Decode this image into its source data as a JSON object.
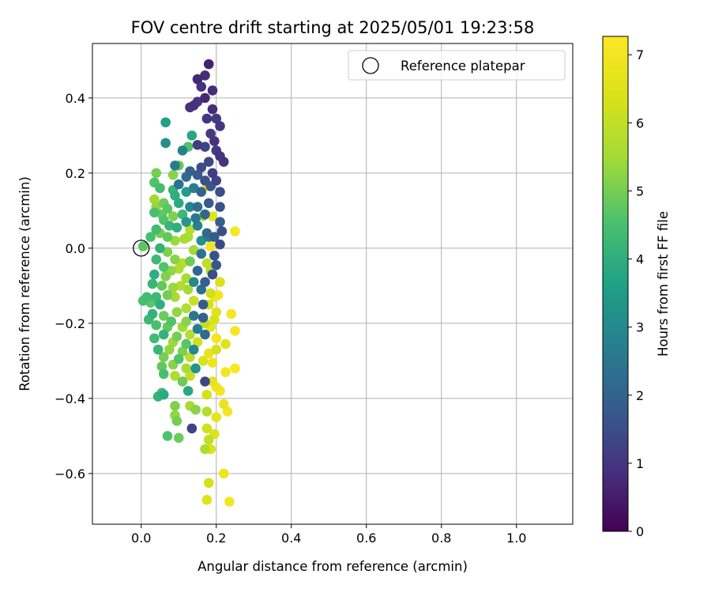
{
  "chart_data": {
    "type": "scatter",
    "title": "FOV centre drift starting at 2025/05/01 19:23:58",
    "xlabel": "Angular distance from reference (arcmin)",
    "ylabel": "Rotation from reference (arcmin)",
    "xlim": [
      -0.13,
      1.15
    ],
    "ylim": [
      -0.735,
      0.545
    ],
    "xticks": [
      0.0,
      0.2,
      0.4,
      0.6,
      0.8,
      1.0
    ],
    "xtick_labels": [
      "0.0",
      "0.2",
      "0.4",
      "0.6",
      "0.8",
      "1.0"
    ],
    "yticks": [
      -0.6,
      -0.4,
      -0.2,
      0.0,
      0.2,
      0.4
    ],
    "ytick_labels": [
      "−0.6",
      "−0.4",
      "−0.2",
      "0.0",
      "0.2",
      "0.4"
    ],
    "grid": true,
    "legend": {
      "position": "top-right",
      "entries": [
        "Reference platepar"
      ]
    },
    "reference_point": {
      "x": 0.0,
      "y": 0.0,
      "label": "Reference platepar"
    },
    "colorbar": {
      "label": "Hours from first FF file",
      "colormap": "viridis",
      "range": [
        0,
        7.27
      ],
      "ticks": [
        0,
        1,
        2,
        3,
        4,
        5,
        6,
        7
      ],
      "tick_labels": [
        "0",
        "1",
        "2",
        "3",
        "4",
        "5",
        "6",
        "7"
      ]
    },
    "points": [
      {
        "x": 0.18,
        "y": 0.49,
        "h": 0.6
      },
      {
        "x": 0.15,
        "y": 0.45,
        "h": 0.7
      },
      {
        "x": 0.17,
        "y": 0.46,
        "h": 0.8
      },
      {
        "x": 0.16,
        "y": 0.43,
        "h": 0.9
      },
      {
        "x": 0.19,
        "y": 0.42,
        "h": 0.8
      },
      {
        "x": 0.17,
        "y": 0.4,
        "h": 0.7
      },
      {
        "x": 0.14,
        "y": 0.38,
        "h": 0.9
      },
      {
        "x": 0.15,
        "y": 0.39,
        "h": 1.0
      },
      {
        "x": 0.19,
        "y": 0.37,
        "h": 0.8
      },
      {
        "x": 0.13,
        "y": 0.375,
        "h": 0.9
      },
      {
        "x": 0.175,
        "y": 0.345,
        "h": 1.0
      },
      {
        "x": 0.2,
        "y": 0.345,
        "h": 1.1
      },
      {
        "x": 0.21,
        "y": 0.325,
        "h": 1.0
      },
      {
        "x": 0.185,
        "y": 0.305,
        "h": 1.1
      },
      {
        "x": 0.195,
        "y": 0.285,
        "h": 0.9
      },
      {
        "x": 0.15,
        "y": 0.275,
        "h": 1.2
      },
      {
        "x": 0.17,
        "y": 0.27,
        "h": 1.3
      },
      {
        "x": 0.2,
        "y": 0.26,
        "h": 1.1
      },
      {
        "x": 0.22,
        "y": 0.23,
        "h": 0.9
      },
      {
        "x": 0.21,
        "y": 0.245,
        "h": 1.0
      },
      {
        "x": 0.18,
        "y": 0.23,
        "h": 1.4
      },
      {
        "x": 0.16,
        "y": 0.215,
        "h": 1.5
      },
      {
        "x": 0.19,
        "y": 0.2,
        "h": 1.2
      },
      {
        "x": 0.2,
        "y": 0.18,
        "h": 1.3
      },
      {
        "x": 0.17,
        "y": 0.18,
        "h": 1.6
      },
      {
        "x": 0.15,
        "y": 0.195,
        "h": 1.8
      },
      {
        "x": 0.13,
        "y": 0.205,
        "h": 2.0
      },
      {
        "x": 0.12,
        "y": 0.19,
        "h": 2.2
      },
      {
        "x": 0.1,
        "y": 0.17,
        "h": 2.4
      },
      {
        "x": 0.09,
        "y": 0.22,
        "h": 2.6
      },
      {
        "x": 0.11,
        "y": 0.26,
        "h": 2.8
      },
      {
        "x": 0.065,
        "y": 0.28,
        "h": 3.2
      },
      {
        "x": 0.065,
        "y": 0.335,
        "h": 3.6
      },
      {
        "x": 0.135,
        "y": 0.3,
        "h": 3.8
      },
      {
        "x": 0.125,
        "y": 0.27,
        "h": 4.6
      },
      {
        "x": 0.1,
        "y": 0.22,
        "h": 4.8
      },
      {
        "x": 0.085,
        "y": 0.195,
        "h": 5.2
      },
      {
        "x": 0.04,
        "y": 0.2,
        "h": 5.0
      },
      {
        "x": 0.035,
        "y": 0.175,
        "h": 4.6
      },
      {
        "x": 0.05,
        "y": 0.16,
        "h": 4.4
      },
      {
        "x": 0.085,
        "y": 0.155,
        "h": 4.2
      },
      {
        "x": 0.09,
        "y": 0.14,
        "h": 4.0
      },
      {
        "x": 0.12,
        "y": 0.15,
        "h": 3.5
      },
      {
        "x": 0.14,
        "y": 0.16,
        "h": 2.7
      },
      {
        "x": 0.16,
        "y": 0.15,
        "h": 2.0
      },
      {
        "x": 0.185,
        "y": 0.165,
        "h": 1.7
      },
      {
        "x": 0.21,
        "y": 0.15,
        "h": 1.5
      },
      {
        "x": 0.175,
        "y": 0.165,
        "h": 6.8
      },
      {
        "x": 0.035,
        "y": 0.13,
        "h": 5.5
      },
      {
        "x": 0.04,
        "y": 0.11,
        "h": 5.3
      },
      {
        "x": 0.06,
        "y": 0.12,
        "h": 4.9
      },
      {
        "x": 0.07,
        "y": 0.105,
        "h": 4.7
      },
      {
        "x": 0.1,
        "y": 0.12,
        "h": 3.9
      },
      {
        "x": 0.13,
        "y": 0.11,
        "h": 2.9
      },
      {
        "x": 0.15,
        "y": 0.11,
        "h": 2.3
      },
      {
        "x": 0.18,
        "y": 0.12,
        "h": 1.8
      },
      {
        "x": 0.21,
        "y": 0.11,
        "h": 1.6
      },
      {
        "x": 0.035,
        "y": 0.095,
        "h": 4.5
      },
      {
        "x": 0.055,
        "y": 0.09,
        "h": 4.8
      },
      {
        "x": 0.085,
        "y": 0.085,
        "h": 5.1
      },
      {
        "x": 0.11,
        "y": 0.09,
        "h": 4.3
      },
      {
        "x": 0.12,
        "y": 0.07,
        "h": 3.4
      },
      {
        "x": 0.145,
        "y": 0.08,
        "h": 2.6
      },
      {
        "x": 0.17,
        "y": 0.09,
        "h": 2.1
      },
      {
        "x": 0.165,
        "y": 0.085,
        "h": 5.7
      },
      {
        "x": 0.19,
        "y": 0.085,
        "h": 6.6
      },
      {
        "x": 0.21,
        "y": 0.07,
        "h": 1.9
      },
      {
        "x": 0.215,
        "y": 0.045,
        "h": 1.5
      },
      {
        "x": 0.25,
        "y": 0.045,
        "h": 7.1
      },
      {
        "x": 0.06,
        "y": 0.075,
        "h": 4.6
      },
      {
        "x": 0.075,
        "y": 0.06,
        "h": 4.2
      },
      {
        "x": 0.095,
        "y": 0.055,
        "h": 4.0
      },
      {
        "x": 0.04,
        "y": 0.05,
        "h": 4.4
      },
      {
        "x": 0.13,
        "y": 0.05,
        "h": 5.8
      },
      {
        "x": 0.15,
        "y": 0.06,
        "h": 2.8
      },
      {
        "x": 0.175,
        "y": 0.04,
        "h": 2.2
      },
      {
        "x": 0.195,
        "y": 0.03,
        "h": 1.8
      },
      {
        "x": 0.05,
        "y": 0.04,
        "h": 5.0
      },
      {
        "x": 0.07,
        "y": 0.03,
        "h": 4.8
      },
      {
        "x": 0.09,
        "y": 0.02,
        "h": 5.4
      },
      {
        "x": 0.115,
        "y": 0.025,
        "h": 5.6
      },
      {
        "x": 0.125,
        "y": 0.03,
        "h": 5.7
      },
      {
        "x": 0.16,
        "y": 0.02,
        "h": 3.2
      },
      {
        "x": 0.18,
        "y": 0.03,
        "h": 2.6
      },
      {
        "x": 0.025,
        "y": 0.03,
        "h": 4.5
      },
      {
        "x": 0.21,
        "y": 0.01,
        "h": 1.4
      },
      {
        "x": 0.185,
        "y": 0.005,
        "h": 7.0
      },
      {
        "x": 0.005,
        "y": 0.005,
        "h": 4.7
      },
      {
        "x": 0.05,
        "y": 0.0,
        "h": 4.1
      },
      {
        "x": 0.07,
        "y": -0.01,
        "h": 5.1
      },
      {
        "x": 0.14,
        "y": -0.005,
        "h": 5.5
      },
      {
        "x": 0.16,
        "y": -0.015,
        "h": 2.4
      },
      {
        "x": 0.195,
        "y": -0.02,
        "h": 1.6
      },
      {
        "x": 0.04,
        "y": -0.03,
        "h": 4.3
      },
      {
        "x": 0.09,
        "y": -0.03,
        "h": 5.2
      },
      {
        "x": 0.11,
        "y": -0.04,
        "h": 5.9
      },
      {
        "x": 0.13,
        "y": -0.035,
        "h": 4.9
      },
      {
        "x": 0.175,
        "y": -0.04,
        "h": 6.0
      },
      {
        "x": 0.2,
        "y": -0.045,
        "h": 1.7
      },
      {
        "x": 0.06,
        "y": -0.05,
        "h": 4.6
      },
      {
        "x": 0.08,
        "y": -0.06,
        "h": 5.3
      },
      {
        "x": 0.1,
        "y": -0.055,
        "h": 5.7
      },
      {
        "x": 0.15,
        "y": -0.06,
        "h": 2.1
      },
      {
        "x": 0.185,
        "y": -0.06,
        "h": 5.8
      },
      {
        "x": 0.035,
        "y": -0.07,
        "h": 4.0
      },
      {
        "x": 0.065,
        "y": -0.075,
        "h": 5.1
      },
      {
        "x": 0.12,
        "y": -0.08,
        "h": 5.6
      },
      {
        "x": 0.19,
        "y": -0.07,
        "h": 1.5
      },
      {
        "x": 0.14,
        "y": -0.09,
        "h": 3.0
      },
      {
        "x": 0.17,
        "y": -0.09,
        "h": 1.9
      },
      {
        "x": 0.21,
        "y": -0.09,
        "h": 6.4
      },
      {
        "x": 0.03,
        "y": -0.095,
        "h": 4.2
      },
      {
        "x": 0.055,
        "y": -0.1,
        "h": 4.8
      },
      {
        "x": 0.085,
        "y": -0.105,
        "h": 5.4
      },
      {
        "x": 0.105,
        "y": -0.1,
        "h": 5.8
      },
      {
        "x": 0.125,
        "y": -0.11,
        "h": 5.5
      },
      {
        "x": 0.16,
        "y": -0.11,
        "h": 2.3
      },
      {
        "x": 0.185,
        "y": -0.12,
        "h": 6.2
      },
      {
        "x": 0.195,
        "y": -0.13,
        "h": 6.9
      },
      {
        "x": 0.205,
        "y": -0.125,
        "h": 7.0
      },
      {
        "x": 0.015,
        "y": -0.13,
        "h": 4.4
      },
      {
        "x": 0.04,
        "y": -0.13,
        "h": 4.3
      },
      {
        "x": 0.07,
        "y": -0.125,
        "h": 5.0
      },
      {
        "x": 0.09,
        "y": -0.13,
        "h": 5.6
      },
      {
        "x": 0.14,
        "y": -0.14,
        "h": 6.1
      },
      {
        "x": 0.165,
        "y": -0.15,
        "h": 1.8
      },
      {
        "x": 0.18,
        "y": -0.15,
        "h": 6.3
      },
      {
        "x": 0.005,
        "y": -0.14,
        "h": 4.5
      },
      {
        "x": 0.025,
        "y": -0.145,
        "h": 4.7
      },
      {
        "x": 0.05,
        "y": -0.15,
        "h": 4.0
      },
      {
        "x": 0.12,
        "y": -0.16,
        "h": 5.7
      },
      {
        "x": 0.2,
        "y": -0.17,
        "h": 6.6
      },
      {
        "x": 0.24,
        "y": -0.175,
        "h": 7.1
      },
      {
        "x": 0.03,
        "y": -0.175,
        "h": 4.1
      },
      {
        "x": 0.06,
        "y": -0.18,
        "h": 4.9
      },
      {
        "x": 0.095,
        "y": -0.17,
        "h": 5.3
      },
      {
        "x": 0.14,
        "y": -0.18,
        "h": 2.5
      },
      {
        "x": 0.165,
        "y": -0.185,
        "h": 1.9
      },
      {
        "x": 0.02,
        "y": -0.19,
        "h": 4.3
      },
      {
        "x": 0.08,
        "y": -0.195,
        "h": 4.6
      },
      {
        "x": 0.12,
        "y": -0.195,
        "h": 5.2
      },
      {
        "x": 0.17,
        "y": -0.2,
        "h": 6.0
      },
      {
        "x": 0.195,
        "y": -0.19,
        "h": 6.4
      },
      {
        "x": 0.04,
        "y": -0.205,
        "h": 4.5
      },
      {
        "x": 0.07,
        "y": -0.21,
        "h": 4.8
      },
      {
        "x": 0.11,
        "y": -0.21,
        "h": 5.5
      },
      {
        "x": 0.15,
        "y": -0.215,
        "h": 2.7
      },
      {
        "x": 0.185,
        "y": -0.21,
        "h": 6.7
      },
      {
        "x": 0.25,
        "y": -0.22,
        "h": 7.1
      },
      {
        "x": 0.06,
        "y": -0.23,
        "h": 4.1
      },
      {
        "x": 0.095,
        "y": -0.235,
        "h": 5.0
      },
      {
        "x": 0.13,
        "y": -0.23,
        "h": 5.8
      },
      {
        "x": 0.17,
        "y": -0.23,
        "h": 2.2
      },
      {
        "x": 0.2,
        "y": -0.24,
        "h": 7.0
      },
      {
        "x": 0.035,
        "y": -0.24,
        "h": 4.4
      },
      {
        "x": 0.085,
        "y": -0.25,
        "h": 5.4
      },
      {
        "x": 0.12,
        "y": -0.255,
        "h": 4.7
      },
      {
        "x": 0.15,
        "y": -0.25,
        "h": 6.2
      },
      {
        "x": 0.225,
        "y": -0.255,
        "h": 6.5
      },
      {
        "x": 0.045,
        "y": -0.27,
        "h": 4.2
      },
      {
        "x": 0.075,
        "y": -0.27,
        "h": 5.3
      },
      {
        "x": 0.11,
        "y": -0.275,
        "h": 5.1
      },
      {
        "x": 0.14,
        "y": -0.27,
        "h": 2.9
      },
      {
        "x": 0.18,
        "y": -0.28,
        "h": 6.8
      },
      {
        "x": 0.2,
        "y": -0.27,
        "h": 6.3
      },
      {
        "x": 0.06,
        "y": -0.29,
        "h": 5.0
      },
      {
        "x": 0.1,
        "y": -0.295,
        "h": 4.6
      },
      {
        "x": 0.13,
        "y": -0.29,
        "h": 5.9
      },
      {
        "x": 0.165,
        "y": -0.3,
        "h": 6.4
      },
      {
        "x": 0.19,
        "y": -0.305,
        "h": 6.9
      },
      {
        "x": 0.055,
        "y": -0.315,
        "h": 4.8
      },
      {
        "x": 0.085,
        "y": -0.31,
        "h": 5.2
      },
      {
        "x": 0.12,
        "y": -0.32,
        "h": 5.6
      },
      {
        "x": 0.145,
        "y": -0.32,
        "h": 3.3
      },
      {
        "x": 0.25,
        "y": -0.32,
        "h": 7.2
      },
      {
        "x": 0.06,
        "y": -0.335,
        "h": 4.5
      },
      {
        "x": 0.09,
        "y": -0.34,
        "h": 5.7
      },
      {
        "x": 0.13,
        "y": -0.34,
        "h": 6.0
      },
      {
        "x": 0.225,
        "y": -0.33,
        "h": 7.0
      },
      {
        "x": 0.17,
        "y": -0.355,
        "h": 1.4
      },
      {
        "x": 0.11,
        "y": -0.355,
        "h": 4.9
      },
      {
        "x": 0.19,
        "y": -0.355,
        "h": 6.6
      },
      {
        "x": 0.2,
        "y": -0.37,
        "h": 6.9
      },
      {
        "x": 0.21,
        "y": -0.38,
        "h": 7.1
      },
      {
        "x": 0.125,
        "y": -0.38,
        "h": 3.8
      },
      {
        "x": 0.055,
        "y": -0.385,
        "h": 4.4
      },
      {
        "x": 0.045,
        "y": -0.395,
        "h": 4.1
      },
      {
        "x": 0.06,
        "y": -0.39,
        "h": 3.9
      },
      {
        "x": 0.175,
        "y": -0.39,
        "h": 6.3
      },
      {
        "x": 0.22,
        "y": -0.415,
        "h": 6.8
      },
      {
        "x": 0.09,
        "y": -0.42,
        "h": 5.1
      },
      {
        "x": 0.13,
        "y": -0.42,
        "h": 5.6
      },
      {
        "x": 0.145,
        "y": -0.43,
        "h": 5.2
      },
      {
        "x": 0.23,
        "y": -0.435,
        "h": 7.0
      },
      {
        "x": 0.175,
        "y": -0.435,
        "h": 5.8
      },
      {
        "x": 0.09,
        "y": -0.445,
        "h": 5.3
      },
      {
        "x": 0.095,
        "y": -0.46,
        "h": 5.0
      },
      {
        "x": 0.2,
        "y": -0.45,
        "h": 6.7
      },
      {
        "x": 0.135,
        "y": -0.48,
        "h": 1.3
      },
      {
        "x": 0.175,
        "y": -0.48,
        "h": 6.2
      },
      {
        "x": 0.195,
        "y": -0.495,
        "h": 6.5
      },
      {
        "x": 0.07,
        "y": -0.5,
        "h": 4.6
      },
      {
        "x": 0.1,
        "y": -0.505,
        "h": 4.9
      },
      {
        "x": 0.18,
        "y": -0.51,
        "h": 6.0
      },
      {
        "x": 0.17,
        "y": -0.535,
        "h": 5.7
      },
      {
        "x": 0.185,
        "y": -0.535,
        "h": 6.4
      },
      {
        "x": 0.22,
        "y": -0.6,
        "h": 6.9
      },
      {
        "x": 0.18,
        "y": -0.625,
        "h": 6.3
      },
      {
        "x": 0.175,
        "y": -0.67,
        "h": 6.5
      },
      {
        "x": 0.235,
        "y": -0.675,
        "h": 7.0
      }
    ]
  }
}
